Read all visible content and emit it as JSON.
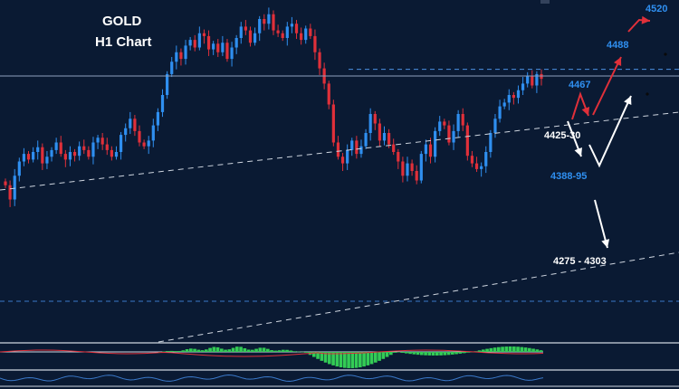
{
  "title": "GOLD",
  "subtitle": "H1 Chart",
  "chart_data": {
    "type": "candlestick",
    "title": "GOLD",
    "subtitle": "H1 Chart",
    "ylim": [
      4180,
      4540
    ],
    "price_path": [
      4345,
      4330,
      4355,
      4370,
      4378,
      4372,
      4380,
      4385,
      4368,
      4375,
      4382,
      4390,
      4378,
      4372,
      4380,
      4376,
      4386,
      4382,
      4375,
      4390,
      4395,
      4388,
      4382,
      4375,
      4380,
      4398,
      4405,
      4415,
      4402,
      4390,
      4386,
      4392,
      4408,
      4422,
      4440,
      4462,
      4475,
      4485,
      4478,
      4492,
      4498,
      4490,
      4505,
      4502,
      4488,
      4494,
      4485,
      4495,
      4478,
      4490,
      4500,
      4512,
      4508,
      4495,
      4505,
      4520,
      4515,
      4525,
      4508,
      4505,
      4500,
      4512,
      4515,
      4505,
      4498,
      4510,
      4502,
      4485,
      4468,
      4452,
      4430,
      4390,
      4375,
      4368,
      4382,
      4392,
      4378,
      4386,
      4400,
      4420,
      4410,
      4392,
      4400,
      4388,
      4380,
      4370,
      4355,
      4368,
      4360,
      4350,
      4378,
      4388,
      4375,
      4402,
      4412,
      4408,
      4390,
      4402,
      4420,
      4408,
      4376,
      4368,
      4362,
      4365,
      4380,
      4400,
      4415,
      4428,
      4432,
      4440,
      4437,
      4445,
      4452,
      4460,
      4450,
      4462,
      4457
    ],
    "resistance_line": 4467,
    "ma_line": 4460,
    "support_line": 4280,
    "levels": [
      {
        "label": "4520",
        "value": 4520,
        "color": "blue"
      },
      {
        "label": "4488",
        "value": 4488,
        "color": "blue"
      },
      {
        "label": "4467",
        "value": 4467,
        "color": "blue"
      },
      {
        "label": "4425-30",
        "value": 4428,
        "color": "white"
      },
      {
        "label": "4388-95",
        "value": 4391,
        "color": "blue"
      },
      {
        "label": "4275 - 4303",
        "value": 4289,
        "color": "white"
      }
    ],
    "arrows": [
      {
        "color": "red",
        "direction": "up"
      },
      {
        "color": "red",
        "direction": "up"
      },
      {
        "color": "red",
        "direction": "up"
      },
      {
        "color": "white",
        "direction": "up"
      },
      {
        "color": "white",
        "direction": "down"
      },
      {
        "color": "white",
        "direction": "down"
      }
    ],
    "indicator": {
      "type": "histogram",
      "positive_color": "#33cc55",
      "negative_color": "#33cc55"
    },
    "colors": {
      "background": "#0a1a33",
      "bull": "#2f8ff0",
      "bear": "#e0303a",
      "level_blue": "#2f8ff0"
    }
  }
}
